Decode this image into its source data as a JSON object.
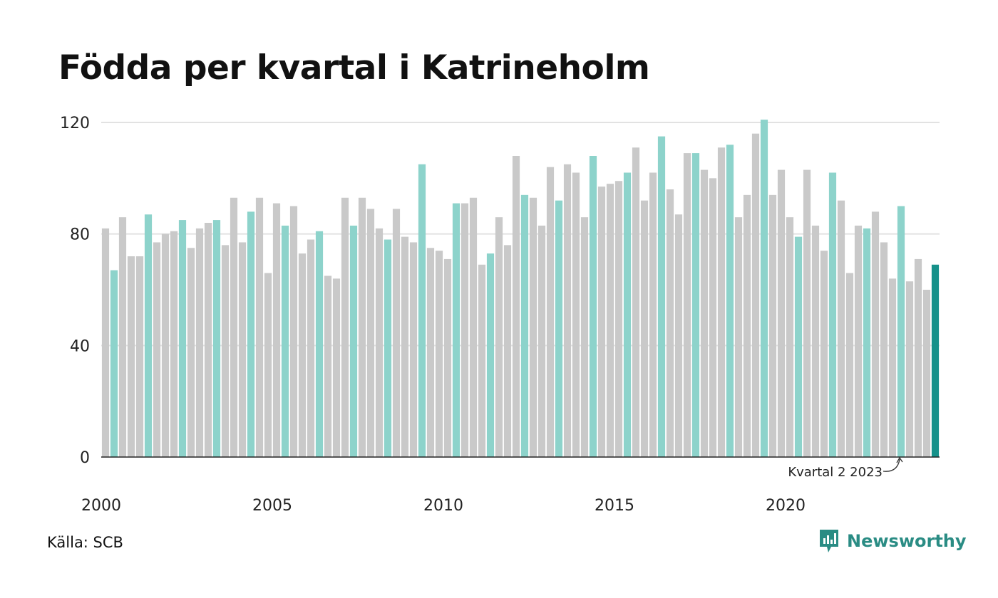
{
  "title": "Födda per kvartal i Katrineholm",
  "source": "Källa: SCB",
  "brand": {
    "name": "Newsworthy",
    "logo_icon": "newsworthy-bar-chart-icon",
    "color": "#2a8c84"
  },
  "colors": {
    "default_bar": "#c9c9c9",
    "highlight_bar": "#8dd3cb",
    "latest_bar": "#16918a",
    "grid": "#e2e2e2",
    "axis": "#222222"
  },
  "chart_data": {
    "type": "bar",
    "title": "Födda per kvartal i Katrineholm",
    "xlabel": "",
    "ylabel": "",
    "ylim": [
      0,
      120
    ],
    "y_ticks": [
      0,
      40,
      80,
      120
    ],
    "x_tick_labels": [
      "2000",
      "2005",
      "2010",
      "2015",
      "2020"
    ],
    "grid": true,
    "highlight": "second quarter of each year",
    "annotation": "Kvartal 2 2023",
    "series": [
      {
        "values": [
          82,
          67,
          86,
          72,
          72,
          87,
          77,
          80,
          81,
          85,
          75,
          82,
          84,
          85,
          76,
          93,
          77,
          88,
          93,
          66,
          91,
          83,
          90,
          73,
          78,
          81,
          65,
          64,
          93,
          83,
          93,
          89,
          82,
          78,
          89,
          79,
          77,
          105,
          75,
          74,
          71,
          91,
          91,
          93,
          69,
          73,
          86,
          76,
          108,
          94,
          93,
          83,
          104,
          92,
          105,
          102,
          86,
          108,
          97,
          98,
          99,
          102,
          111,
          92,
          102,
          115,
          96,
          87,
          109,
          109,
          103,
          100,
          111,
          112,
          86,
          94,
          116,
          121,
          94,
          103,
          86,
          79,
          103,
          83,
          74,
          102,
          92,
          66,
          83,
          82,
          88,
          77,
          64,
          90,
          63,
          71,
          60,
          69
        ]
      }
    ]
  }
}
